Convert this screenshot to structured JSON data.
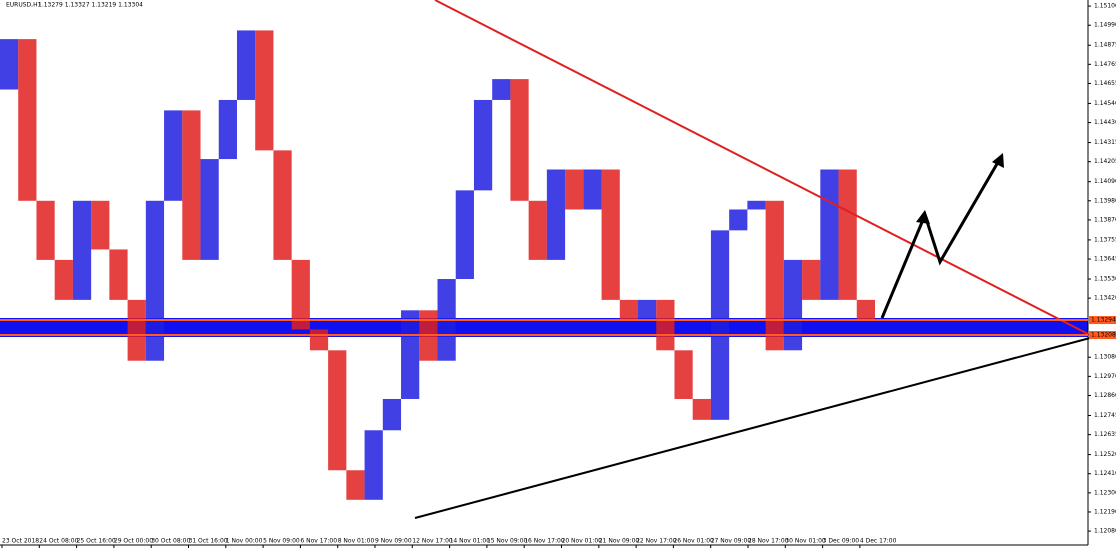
{
  "header": {
    "symbol": "EURUSD,H1",
    "ohlc": "1.13279 1.13327 1.13219 1.13304"
  },
  "chart_data": {
    "type": "price-bars",
    "ylim": [
      1.12,
      1.15135
    ],
    "closes": [
      1.1462,
      1.1491,
      1.1398,
      1.1364,
      1.1341,
      1.1398,
      1.137,
      1.1341,
      1.1306,
      1.1398,
      1.145,
      1.1364,
      1.1422,
      1.1456,
      1.1496,
      1.1427,
      1.1364,
      1.1324,
      1.1312,
      1.1243,
      1.1226,
      1.1266,
      1.1284,
      1.1335,
      1.1306,
      1.1353,
      1.1404,
      1.1456,
      1.1468,
      1.1398,
      1.1364,
      1.1416,
      1.1393,
      1.1416,
      1.1341,
      1.133,
      1.1341,
      1.1312,
      1.1284,
      1.1272,
      1.1381,
      1.1393,
      1.1398,
      1.1312,
      1.1364,
      1.1341,
      1.1416,
      1.1341,
      1.133
    ],
    "up_color": "#1f1fe0",
    "down_color": "#e02020",
    "yticks": [
      {
        "value": 1.151,
        "label": "1.15100"
      },
      {
        "value": 1.1499,
        "label": "1.14990"
      },
      {
        "value": 1.14875,
        "label": "1.14875"
      },
      {
        "value": 1.14765,
        "label": "1.14765"
      },
      {
        "value": 1.14655,
        "label": "1.14655"
      },
      {
        "value": 1.1454,
        "label": "1.14540"
      },
      {
        "value": 1.1443,
        "label": "1.14430"
      },
      {
        "value": 1.14315,
        "label": "1.14315"
      },
      {
        "value": 1.14205,
        "label": "1.14205"
      },
      {
        "value": 1.1409,
        "label": "1.14090"
      },
      {
        "value": 1.1398,
        "label": "1.13980"
      },
      {
        "value": 1.1387,
        "label": "1.13870"
      },
      {
        "value": 1.13755,
        "label": "1.13755"
      },
      {
        "value": 1.13645,
        "label": "1.13645"
      },
      {
        "value": 1.1353,
        "label": "1.13530"
      },
      {
        "value": 1.1342,
        "label": "1.13420"
      },
      {
        "value": 1.1308,
        "label": "1.13080"
      },
      {
        "value": 1.1297,
        "label": "1.12970"
      },
      {
        "value": 1.1286,
        "label": "1.12860"
      },
      {
        "value": 1.12745,
        "label": "1.12745"
      },
      {
        "value": 1.12635,
        "label": "1.12635"
      },
      {
        "value": 1.1252,
        "label": "1.12520"
      },
      {
        "value": 1.1241,
        "label": "1.12410"
      },
      {
        "value": 1.123,
        "label": "1.12300"
      },
      {
        "value": 1.1219,
        "label": "1.12190"
      },
      {
        "value": 1.1208,
        "label": "1.12080"
      }
    ],
    "levels": [
      {
        "value": 1.13294,
        "label": "1.13294"
      },
      {
        "value": 1.13208,
        "label": "1.13208"
      }
    ],
    "x_labels": [
      "23 Oct 2018",
      "24 Oct 08:00",
      "25 Oct 16:00",
      "29 Oct 00:00",
      "30 Oct 08:00",
      "31 Oct 16:00",
      "1 Nov 00:00",
      "5 Nov 09:00",
      "6 Nov 17:00",
      "8 Nov 01:00",
      "9 Nov 09:00",
      "12 Nov 17:00",
      "14 Nov 01:00",
      "15 Nov 09:00",
      "16 Nov 17:00",
      "20 Nov 01:00",
      "21 Nov 09:00",
      "22 Nov 17:00",
      "26 Nov 01:00",
      "27 Nov 09:00",
      "28 Nov 17:00",
      "30 Nov 01:00",
      "3 Dec 09:00",
      "4 Dec 17:00"
    ]
  }
}
